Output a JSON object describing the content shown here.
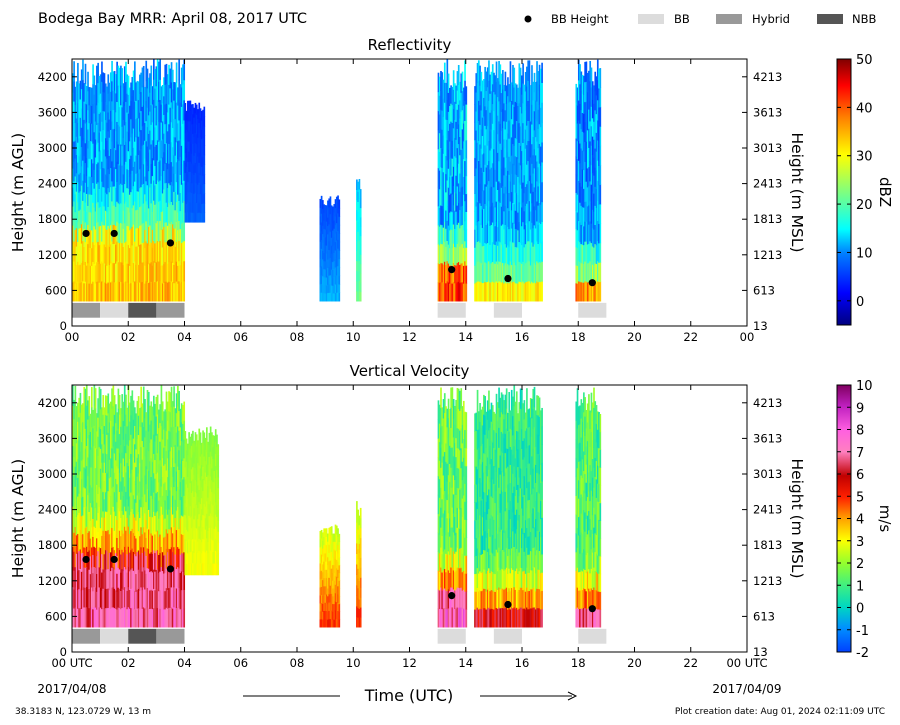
{
  "page": {
    "header_title": "Bodega Bay MRR:  April 08, 2017 UTC",
    "legend": [
      {
        "label": "BB Height",
        "kind": "dot",
        "color": "#000000"
      },
      {
        "label": "BB",
        "kind": "box",
        "color": "#dcdcdc"
      },
      {
        "label": "Hybrid",
        "kind": "box",
        "color": "#999999"
      },
      {
        "label": "NBB",
        "kind": "box",
        "color": "#555555"
      }
    ],
    "x_axis_title": "Time (UTC)",
    "start_date": "2017/04/08",
    "end_date": "2017/04/09",
    "location": "38.3183 N, 123.0729 W, 13 m",
    "creation": "Plot creation date: Aug 01, 2024 02:11:09 UTC"
  },
  "chart_data": [
    {
      "type": "heatmap",
      "title": "Reflectivity",
      "ylabel": "Height (m AGL)",
      "ylabel_right": "Height (m MSL)",
      "colorbar_label": "dBZ",
      "colorbar_ticks": [
        "50",
        "40",
        "30",
        "20",
        "10",
        "0"
      ],
      "colorbar_range": [
        -5,
        50
      ],
      "x_ticks": [
        "00",
        "02",
        "04",
        "06",
        "08",
        "10",
        "12",
        "14",
        "16",
        "18",
        "20",
        "22",
        "00"
      ],
      "xlim": [
        0,
        24
      ],
      "ylim": [
        0,
        4500
      ],
      "y_ticks": [
        "0",
        "600",
        "1200",
        "1800",
        "2400",
        "3000",
        "3600",
        "4200"
      ],
      "y_ticks_right": [
        "13",
        "613",
        "1213",
        "1813",
        "2413",
        "3013",
        "3613",
        "4213"
      ],
      "bb_height": [
        {
          "t": 0.5,
          "h": 1560
        },
        {
          "t": 1.5,
          "h": 1560
        },
        {
          "t": 3.5,
          "h": 1400
        },
        {
          "t": 13.5,
          "h": 950
        },
        {
          "t": 15.5,
          "h": 800
        },
        {
          "t": 18.5,
          "h": 730
        }
      ],
      "bb_classification": [
        {
          "start": 0,
          "end": 1,
          "class": "Hybrid"
        },
        {
          "start": 1,
          "end": 2,
          "class": "BB"
        },
        {
          "start": 2,
          "end": 3,
          "class": "NBB"
        },
        {
          "start": 3,
          "end": 4,
          "class": "Hybrid"
        },
        {
          "start": 13,
          "end": 14,
          "class": "BB"
        },
        {
          "start": 15,
          "end": 16,
          "class": "BB"
        },
        {
          "start": 18,
          "end": 19,
          "class": "BB"
        }
      ],
      "echo_segments": [
        {
          "start": 0.0,
          "end": 4.0,
          "top": 4500,
          "bottom": 420,
          "peak": 34,
          "base": 11,
          "bb": 1560
        },
        {
          "start": 4.0,
          "end": 4.7,
          "top": 3800,
          "bottom": 1750,
          "peak": 8,
          "base": 4,
          "bb": 0
        },
        {
          "start": 8.8,
          "end": 9.5,
          "top": 2200,
          "bottom": 420,
          "peak": 12,
          "base": 6,
          "bb": 0
        },
        {
          "start": 10.1,
          "end": 10.25,
          "top": 2550,
          "bottom": 420,
          "peak": 22,
          "base": 12,
          "bb": 0
        },
        {
          "start": 13.0,
          "end": 14.0,
          "top": 4500,
          "bottom": 420,
          "peak": 42,
          "base": 12,
          "bb": 950
        },
        {
          "start": 14.3,
          "end": 16.7,
          "top": 4500,
          "bottom": 420,
          "peak": 32,
          "base": 11,
          "bb": 800
        },
        {
          "start": 17.9,
          "end": 18.8,
          "top": 4500,
          "bottom": 420,
          "peak": 38,
          "base": 10,
          "bb": 730
        }
      ]
    },
    {
      "type": "heatmap",
      "title": "Vertical Velocity",
      "ylabel": "Height (m AGL)",
      "ylabel_right": "Height (m MSL)",
      "colorbar_label": "m/s",
      "colorbar_ticks": [
        "10",
        "9",
        "8",
        "7",
        "6",
        "5",
        "4",
        "3",
        "2",
        "1",
        "0",
        "-1",
        "-2"
      ],
      "colorbar_range": [
        -2,
        10
      ],
      "x_ticks": [
        "00 UTC",
        "02",
        "04",
        "06",
        "08",
        "10",
        "12",
        "14",
        "16",
        "18",
        "20",
        "22",
        "00 UTC"
      ],
      "xlim": [
        0,
        24
      ],
      "ylim": [
        0,
        4500
      ],
      "y_ticks": [
        "0",
        "600",
        "1200",
        "1800",
        "2400",
        "3000",
        "3600",
        "4200"
      ],
      "y_ticks_right": [
        "13",
        "613",
        "1213",
        "1813",
        "2413",
        "3013",
        "3613",
        "4213"
      ],
      "bb_height": [
        {
          "t": 0.5,
          "h": 1560
        },
        {
          "t": 1.5,
          "h": 1560
        },
        {
          "t": 3.5,
          "h": 1400
        },
        {
          "t": 13.5,
          "h": 950
        },
        {
          "t": 15.5,
          "h": 800
        },
        {
          "t": 18.5,
          "h": 730
        }
      ],
      "bb_classification": [
        {
          "start": 0,
          "end": 1,
          "class": "Hybrid"
        },
        {
          "start": 1,
          "end": 2,
          "class": "BB"
        },
        {
          "start": 2,
          "end": 3,
          "class": "NBB"
        },
        {
          "start": 3,
          "end": 4,
          "class": "Hybrid"
        },
        {
          "start": 13,
          "end": 14,
          "class": "BB"
        },
        {
          "start": 15,
          "end": 16,
          "class": "BB"
        },
        {
          "start": 18,
          "end": 19,
          "class": "BB"
        }
      ],
      "echo_segments": [
        {
          "start": 0.0,
          "end": 4.0,
          "top": 4500,
          "bottom": 420,
          "peak": 7,
          "base": 1.6,
          "bb": 1560
        },
        {
          "start": 4.0,
          "end": 5.2,
          "top": 3800,
          "bottom": 1300,
          "peak": 3,
          "base": 1.8,
          "bb": 0
        },
        {
          "start": 8.8,
          "end": 9.5,
          "top": 2200,
          "bottom": 420,
          "peak": 5,
          "base": 2.5,
          "bb": 0
        },
        {
          "start": 10.1,
          "end": 10.25,
          "top": 2550,
          "bottom": 420,
          "peak": 5,
          "base": 2.5,
          "bb": 0
        },
        {
          "start": 13.0,
          "end": 14.0,
          "top": 4500,
          "bottom": 420,
          "peak": 7.5,
          "base": 1.5,
          "bb": 950
        },
        {
          "start": 14.3,
          "end": 16.7,
          "top": 4500,
          "bottom": 420,
          "peak": 6,
          "base": 0.8,
          "bb": 800
        },
        {
          "start": 17.9,
          "end": 18.8,
          "top": 4500,
          "bottom": 420,
          "peak": 7,
          "base": 1.2,
          "bb": 730
        }
      ]
    }
  ]
}
